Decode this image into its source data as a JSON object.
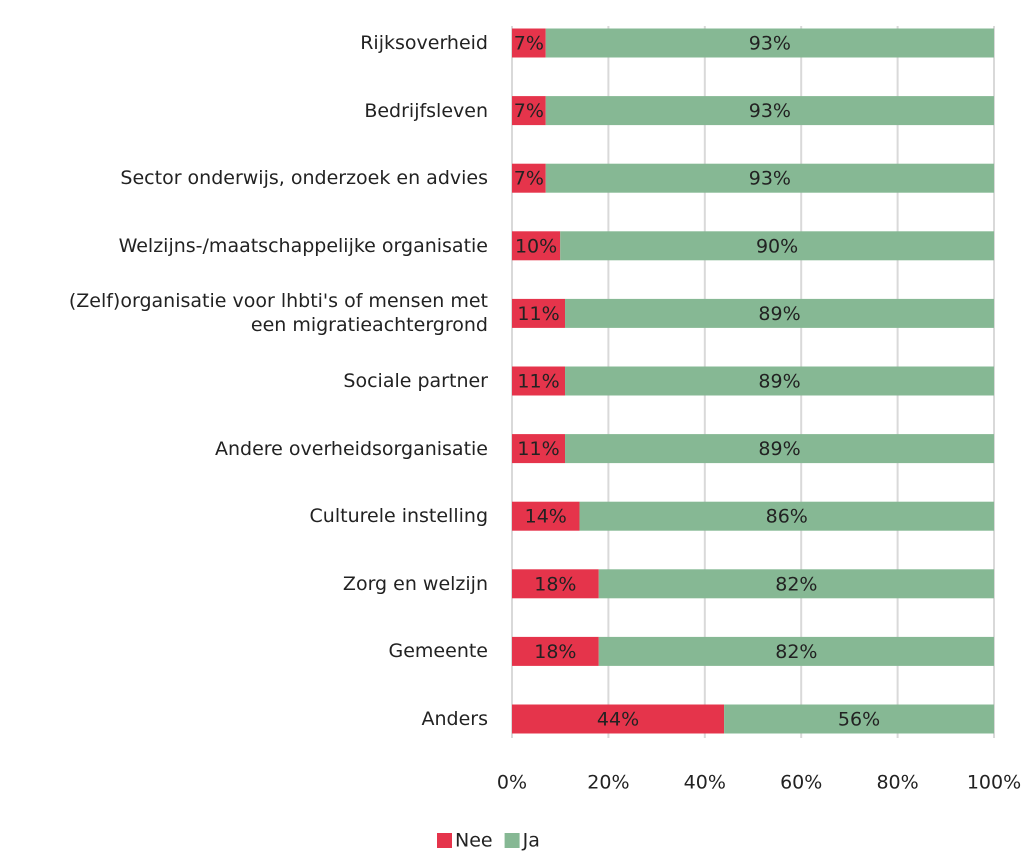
{
  "chart_data": {
    "type": "stacked-bar-horizontal",
    "categories": [
      "Rijksoverheid",
      "Bedrijfsleven",
      "Sector onderwijs, onderzoek en advies",
      "Welzijns-/maatschappelijke organisatie",
      "(Zelf)organisatie voor lhbti's of mensen met\neen migratieachtergrond",
      "Sociale partner",
      "Andere overheidsorganisatie",
      "Culturele instelling",
      "Zorg en welzijn",
      "Gemeente",
      "Anders"
    ],
    "series": [
      {
        "name": "Nee",
        "color": "#e5344b",
        "values": [
          7,
          7,
          7,
          10,
          11,
          11,
          11,
          14,
          18,
          18,
          44
        ],
        "value_labels": [
          "7%",
          "7%",
          "7%",
          "10%",
          "11%",
          "11%",
          "11%",
          "14%",
          "18%",
          "18%",
          "44%"
        ]
      },
      {
        "name": "Ja",
        "color": "#86b894",
        "values": [
          93,
          93,
          93,
          90,
          89,
          89,
          89,
          86,
          82,
          82,
          56
        ],
        "value_labels": [
          "93%",
          "93%",
          "93%",
          "90%",
          "89%",
          "89%",
          "89%",
          "86%",
          "82%",
          "82%",
          "56%"
        ]
      }
    ],
    "xlim": [
      0,
      100
    ],
    "xticks": [
      {
        "value": 0,
        "label": "0%"
      },
      {
        "value": 20,
        "label": "20%"
      },
      {
        "value": 40,
        "label": "40%"
      },
      {
        "value": 60,
        "label": "60%"
      },
      {
        "value": 80,
        "label": "80%"
      },
      {
        "value": 100,
        "label": "100%"
      }
    ],
    "grid": true,
    "legend": "bottom"
  }
}
